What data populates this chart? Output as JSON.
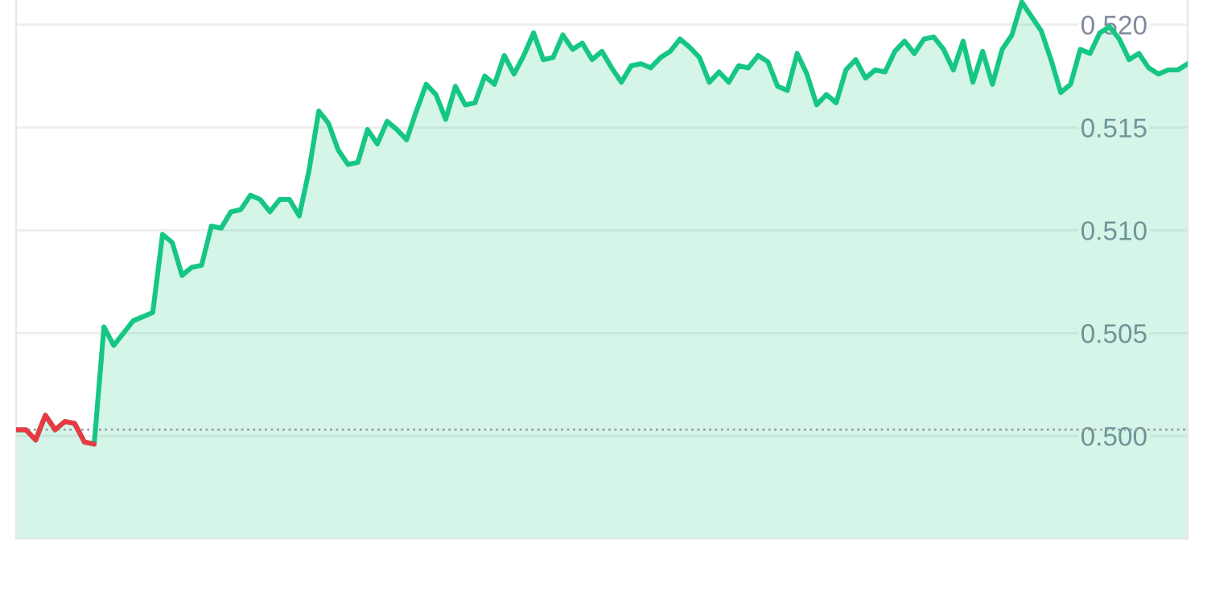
{
  "chart_data": {
    "type": "area",
    "categories": [
      null,
      null,
      null,
      null,
      null,
      null,
      null,
      null,
      null,
      null,
      null,
      null,
      null,
      null,
      null,
      null,
      null,
      null,
      null,
      null,
      null,
      null,
      null,
      null,
      null,
      null,
      null,
      null,
      null,
      null,
      null,
      null,
      null,
      null,
      null,
      null,
      null,
      null,
      null,
      null,
      null,
      null,
      null,
      null,
      null,
      null,
      null,
      null,
      null,
      null,
      null,
      null,
      null,
      null,
      null,
      null,
      null,
      null,
      null,
      null,
      null,
      null,
      null,
      null,
      null,
      null,
      null,
      null,
      null,
      null,
      null,
      null,
      null,
      null,
      null,
      null,
      null,
      null,
      null,
      null,
      null,
      null,
      null,
      null,
      null,
      null,
      null,
      null,
      null,
      null,
      null,
      null,
      null,
      null,
      null,
      null,
      null,
      null,
      null,
      null,
      null,
      null,
      null,
      null,
      null,
      null,
      null,
      null,
      null,
      null,
      null,
      null,
      null,
      null,
      null,
      null,
      null,
      null,
      null,
      null,
      null
    ],
    "series": [
      {
        "color": "#16c784",
        "values": [
          0.5003,
          0.5003,
          0.4998,
          0.501,
          0.5003,
          0.5007,
          0.5006,
          0.4997,
          0.4996,
          0.5053,
          0.5044,
          0.505,
          0.5056,
          0.5058,
          0.506,
          0.5098,
          0.5094,
          0.5078,
          0.5082,
          0.5083,
          0.5102,
          0.5101,
          0.5109,
          0.511,
          0.5117,
          0.5115,
          0.5109,
          0.5115,
          0.5115,
          0.5107,
          0.5129,
          0.5158,
          0.5152,
          0.5139,
          0.5132,
          0.5133,
          0.5149,
          0.5142,
          0.5153,
          0.5149,
          0.5144,
          0.5158,
          0.5171,
          0.5166,
          0.5154,
          0.517,
          0.5161,
          0.5162,
          0.5175,
          0.5171,
          0.5185,
          0.5176,
          0.5185,
          0.5196,
          0.5183,
          0.5184,
          0.5195,
          0.5188,
          0.5191,
          0.5183,
          0.5187,
          0.5179,
          0.5172,
          0.518,
          0.5181,
          0.5179,
          0.5184,
          0.5187,
          0.5193,
          0.5189,
          0.5184,
          0.5172,
          0.5177,
          0.5172,
          0.518,
          0.5179,
          0.5185,
          0.5182,
          0.517,
          0.5168,
          0.5186,
          0.5176,
          0.5161,
          0.5166,
          0.5162,
          0.5178,
          0.5183,
          0.5174,
          0.5178,
          0.5177,
          0.5187,
          0.5192,
          0.5186,
          0.5193,
          0.5194,
          0.5188,
          0.5178,
          0.5192,
          0.5172,
          0.5187,
          0.5171,
          0.5188,
          0.5195,
          0.5211,
          0.5204,
          0.5197,
          0.5183,
          0.5167,
          0.5171,
          0.5188,
          0.5186,
          0.5196,
          0.5199,
          0.5193,
          0.5183,
          0.5186,
          0.5179,
          0.5176,
          0.5178,
          0.5178,
          0.5181
        ]
      },
      {
        "type": "line",
        "color": "#ea3943",
        "values": [
          0.5003,
          0.5003,
          0.4998,
          0.501,
          0.5003,
          0.5007,
          0.5006,
          0.4997,
          0.4996,
          null,
          null,
          null,
          null,
          null,
          null,
          null,
          null,
          null,
          null,
          null,
          null,
          null,
          null,
          null,
          null,
          null,
          null,
          null,
          null,
          null,
          null,
          null,
          null,
          null,
          null,
          null,
          null,
          null,
          null,
          null,
          null,
          null,
          null,
          null,
          null,
          null,
          null,
          null,
          null,
          null,
          null,
          null,
          null,
          null,
          null,
          null,
          null,
          null,
          null,
          null,
          null,
          null,
          null,
          null,
          null,
          null,
          null,
          null,
          null,
          null,
          null,
          null,
          null,
          null,
          null,
          null,
          null,
          null,
          null,
          null,
          null,
          null,
          null,
          null,
          null,
          null,
          null,
          null,
          null,
          null,
          null,
          null,
          null,
          null,
          null,
          null,
          null,
          null,
          null,
          null,
          null,
          null,
          null,
          null,
          null,
          null,
          null,
          null,
          null,
          null,
          null,
          null,
          null,
          null,
          null,
          null,
          null,
          null,
          null,
          null,
          null
        ]
      }
    ],
    "ylim": [
      0.495,
      0.5212
    ],
    "yticks": [
      {
        "value": 0.5,
        "label": "0.500"
      },
      0.505,
      {
        "value": 0.51,
        "label": "0.510"
      },
      0.515,
      {
        "value": 0.52,
        "label": "0.520"
      }
    ],
    "ref_lines": [
      {
        "axis": "y",
        "value": 0.5003,
        "color": "#9aa0a6",
        "line_style": "dotted"
      }
    ],
    "grid": "y",
    "tick_labels": "y"
  }
}
